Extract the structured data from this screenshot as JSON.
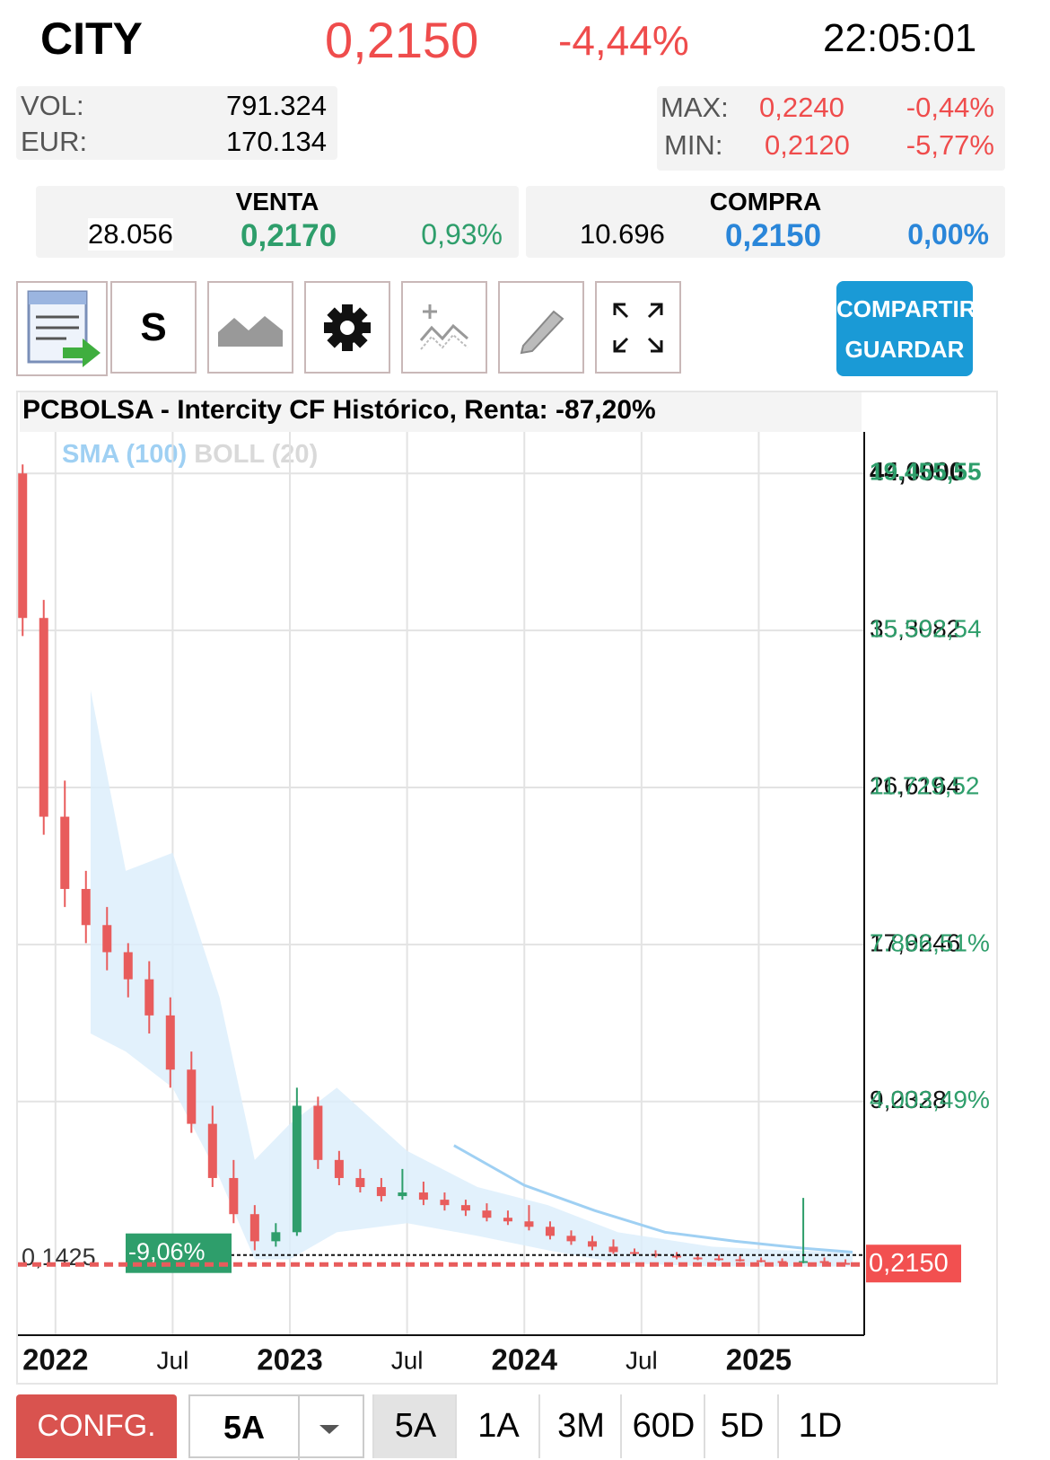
{
  "header": {
    "ticker": "CITY",
    "price": "0,2150",
    "change": "-4,44%",
    "time": "22:05:01"
  },
  "stats": {
    "vol_label": "VOL:",
    "vol": "791.324",
    "eur_label": "EUR:",
    "eur": "170.134",
    "max_label": "MAX:",
    "max": "0,2240",
    "max_change": "-0,44%",
    "min_label": "MIN:",
    "min": "0,2120",
    "min_change": "-5,77%"
  },
  "venta": {
    "label": "VENTA",
    "qty": "28.056",
    "price": "0,2170",
    "change": "0,93%"
  },
  "compra": {
    "label": "COMPRA",
    "qty": "10.696",
    "price": "0,2150",
    "change": "0,00%"
  },
  "toolbar": {
    "s_button": "S",
    "share": "COMPARTIR",
    "save": "GUARDAR"
  },
  "bottom_bar": {
    "config": "CONFG.",
    "range_select": "5A",
    "tabs": [
      "5A",
      "1A",
      "3M",
      "60D",
      "5D",
      "1D"
    ]
  },
  "chart_data": {
    "type": "candlestick",
    "title": "PCBOLSA - Intercity CF Histórico, Renta: -87,20%",
    "indicators": [
      {
        "name": "SMA (100)",
        "color": "#9fd0f3"
      },
      {
        "name": "BOLL (20)",
        "color": "#d9d9d9"
      }
    ],
    "up_color": "#2e9e6b",
    "down_color": "#e85c5c",
    "grid": true,
    "xlim": [
      2021.84,
      2025.45
    ],
    "xticks": [
      {
        "value": 2022,
        "label": "2022"
      },
      {
        "value": 2022.5,
        "label": "Jul"
      },
      {
        "value": 2023,
        "label": "2023"
      },
      {
        "value": 2023.5,
        "label": "Jul"
      },
      {
        "value": 2024,
        "label": "2024"
      },
      {
        "value": 2024.5,
        "label": "Jul"
      },
      {
        "value": 2025,
        "label": "2025"
      }
    ],
    "ylim": [
      -3.7,
      46.3
    ],
    "yticks": [
      {
        "value": 44,
        "label": "44,0000"
      },
      {
        "value": 35.3082,
        "label": "35,3082"
      },
      {
        "value": 26.6164,
        "label": "26,6164"
      },
      {
        "value": 17.9246,
        "label": "17,9246"
      },
      {
        "value": 9.2328,
        "label": "9,2328"
      }
    ],
    "y2lim": [
      -1744.4,
      20477.8
    ],
    "y2ticks": [
      {
        "value": 19455.55,
        "label": "19.455,55"
      },
      {
        "value": 15592.54,
        "label": "15.592,54"
      },
      {
        "value": 11729.52,
        "label": "11.729,52"
      },
      {
        "value": 7866.51,
        "label": "7.866,51%"
      },
      {
        "value": 4003.49,
        "label": "4.003,49%"
      }
    ],
    "x": [
      2021.86,
      2021.95,
      2022.04,
      2022.13,
      2022.22,
      2022.31,
      2022.4,
      2022.49,
      2022.58,
      2022.67,
      2022.76,
      2022.85,
      2022.94,
      2023.03,
      2023.12,
      2023.21,
      2023.3,
      2023.39,
      2023.48,
      2023.57,
      2023.66,
      2023.75,
      2023.84,
      2023.93,
      2024.02,
      2024.11,
      2024.2,
      2024.29,
      2024.38,
      2024.47,
      2024.56,
      2024.65,
      2024.74,
      2024.83,
      2024.92,
      2025.01,
      2025.1,
      2025.19,
      2025.28,
      2025.37
    ],
    "open": [
      44,
      36,
      25,
      21,
      19,
      17.5,
      16,
      14,
      11,
      8,
      5,
      3,
      1.5,
      2,
      9,
      6,
      5,
      4.5,
      4,
      4.2,
      3.8,
      3.5,
      3.2,
      2.8,
      2.6,
      2.3,
      1.8,
      1.5,
      1.2,
      0.9,
      0.8,
      0.7,
      0.6,
      0.55,
      0.5,
      0.45,
      0.4,
      0.35,
      0.4,
      0.3
    ],
    "high": [
      44.5,
      37,
      27,
      22,
      20,
      18,
      17,
      15,
      12,
      9,
      6,
      3.5,
      2.5,
      10,
      9.5,
      6.5,
      5.5,
      5,
      5.5,
      4.8,
      4.2,
      3.8,
      3.6,
      3.2,
      3.5,
      2.6,
      2.1,
      1.8,
      1.6,
      1.1,
      1,
      0.9,
      0.8,
      0.75,
      0.7,
      0.6,
      0.55,
      3.9,
      0.6,
      0.5
    ],
    "low": [
      35,
      24,
      20,
      18,
      16.5,
      15,
      13,
      10,
      7.5,
      4.5,
      2.5,
      1,
      1.2,
      1.8,
      5.5,
      4.6,
      4.2,
      3.7,
      3.8,
      3.5,
      3.2,
      2.9,
      2.6,
      2.4,
      2.1,
      1.6,
      1.3,
      1,
      0.8,
      0.7,
      0.6,
      0.5,
      0.45,
      0.42,
      0.38,
      0.33,
      0.3,
      0.28,
      0.25,
      0.2
    ],
    "close": [
      36,
      25,
      21,
      19,
      17.5,
      16,
      14,
      11,
      8,
      5,
      3,
      1.5,
      2,
      9,
      6,
      5,
      4.5,
      4,
      4.2,
      3.8,
      3.5,
      3.2,
      2.8,
      2.6,
      2.3,
      1.8,
      1.5,
      1.2,
      0.9,
      0.8,
      0.7,
      0.6,
      0.55,
      0.5,
      0.45,
      0.4,
      0.35,
      0.4,
      0.3,
      0.215
    ],
    "sma": {
      "x": [
        2023.7,
        2024,
        2024.3,
        2024.6,
        2024.9,
        2025.2,
        2025.4
      ],
      "values": [
        6.8,
        4.6,
        3.2,
        2,
        1.5,
        1.1,
        0.9
      ]
    },
    "boll": {
      "x": [
        2022.15,
        2022.3,
        2022.5,
        2022.7,
        2022.85,
        2023,
        2023.2,
        2023.5,
        2023.8,
        2024.1,
        2024.4,
        2024.8,
        2025.1,
        2025.4
      ],
      "upper": [
        32,
        22,
        23,
        15,
        6,
        8,
        10,
        6.5,
        4.5,
        3.5,
        2,
        1.2,
        1,
        0.9
      ],
      "lower": [
        13,
        12,
        10,
        5,
        0.5,
        0.5,
        2,
        2.5,
        1.8,
        1,
        0.3,
        0.1,
        0.1,
        0.1
      ],
      "color": "#dbeefb"
    },
    "reference_lines": [
      {
        "value": 0.1425,
        "label": "0,1425",
        "change": "-9,06%"
      },
      {
        "value": 0.215,
        "label": "0,2150"
      }
    ]
  }
}
